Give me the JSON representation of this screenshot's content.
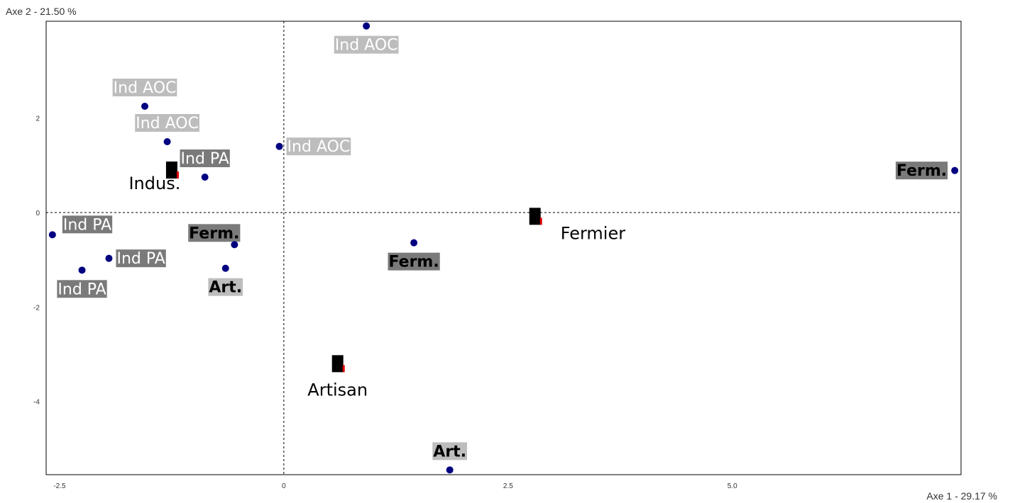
{
  "chart_data": {
    "type": "scatter",
    "xlabel": "Axe 1  -  29.17 %",
    "ylabel": "Axe 2  -  21.50 %",
    "xlim": [
      -2.65,
      7.55
    ],
    "ylim": [
      -5.55,
      4.05
    ],
    "x_ticks": [
      -2.5,
      0,
      2.5,
      5.0
    ],
    "x_tick_labels": [
      "-2.5",
      "0",
      "2.5",
      "5.0"
    ],
    "y_ticks": [
      2,
      0,
      -2,
      -4
    ],
    "y_tick_labels": [
      "2",
      "0",
      "-2",
      "-4"
    ],
    "grid": false,
    "points": [
      {
        "x": 0.92,
        "y": 3.95,
        "label": "Ind AOC",
        "style": "light",
        "anchor": "below"
      },
      {
        "x": -1.55,
        "y": 2.25,
        "label": "Ind AOC",
        "style": "light",
        "anchor": "above"
      },
      {
        "x": -1.3,
        "y": 1.5,
        "label": "Ind AOC",
        "style": "light",
        "anchor": "above"
      },
      {
        "x": -0.05,
        "y": 1.4,
        "label": "Ind AOC",
        "style": "light",
        "anchor": "right"
      },
      {
        "x": -0.88,
        "y": 0.75,
        "label": "Ind PA",
        "style": "dark",
        "anchor": "above"
      },
      {
        "x": -2.58,
        "y": -0.47,
        "label": "Ind PA",
        "style": "dark",
        "anchor": "above-right"
      },
      {
        "x": -2.25,
        "y": -1.22,
        "label": "Ind PA",
        "style": "dark",
        "anchor": "below"
      },
      {
        "x": -1.95,
        "y": -0.97,
        "label": "Ind PA",
        "style": "dark",
        "anchor": "right"
      },
      {
        "x": -0.55,
        "y": -0.68,
        "label": "Ferm.",
        "style": "dark-bold",
        "anchor": "above-left"
      },
      {
        "x": -0.65,
        "y": -1.18,
        "label": "Art.",
        "style": "light-bold",
        "anchor": "below"
      },
      {
        "x": 1.45,
        "y": -0.64,
        "label": "Ferm.",
        "style": "dark-bold",
        "anchor": "below"
      },
      {
        "x": 7.48,
        "y": 0.89,
        "label": "Ferm.",
        "style": "dark-bold",
        "anchor": "left"
      },
      {
        "x": 1.85,
        "y": -5.45,
        "label": "Art.",
        "style": "light-bold",
        "anchor": "above"
      }
    ],
    "categories": [
      {
        "x": -1.25,
        "y": 0.9,
        "label": "Indus."
      },
      {
        "x": 2.8,
        "y": -0.08,
        "label": "Fermier"
      },
      {
        "x": 0.6,
        "y": -3.2,
        "label": "Artisan"
      }
    ],
    "colors": {
      "point": "#000080",
      "dark_label_bg": "#7a7a7a",
      "light_label_bg": "#bdbdbd",
      "light_label_text": "#ffffff",
      "bold_label_text": "#000000",
      "category_marker": "#000000",
      "category_accent": "#dd0000"
    }
  }
}
